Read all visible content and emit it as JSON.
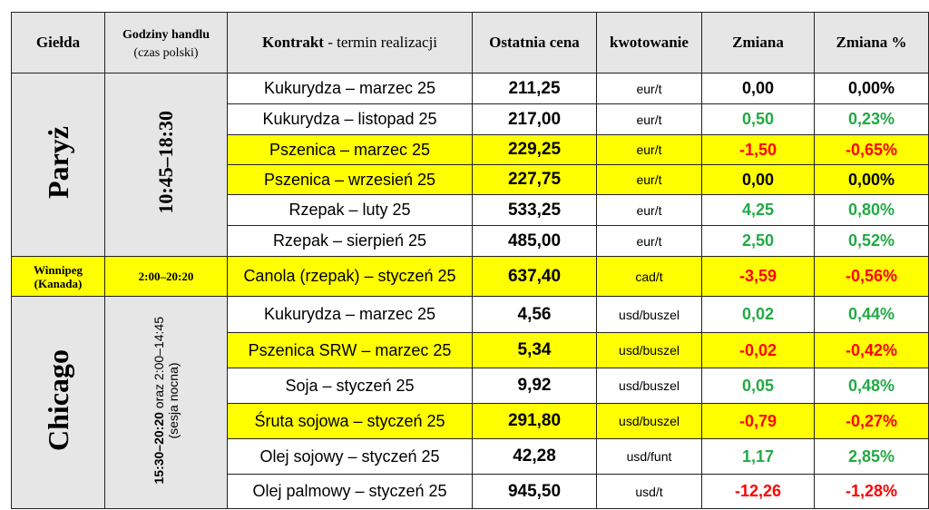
{
  "headers": {
    "gielda": "Giełda",
    "godziny": "Godziny handlu",
    "godziny_sub": "(czas polski)",
    "kontrakt": "Kontrakt",
    "kontrakt_sub": " - termin realizacji",
    "cena": "Ostatnia cena",
    "kwot": "kwotowanie",
    "zmiana": "Zmiana",
    "zmiana_pct": "Zmiana %"
  },
  "colors": {
    "positive": "#22aa44",
    "negative": "#ff0000",
    "neutral": "#000000",
    "highlight": "#ffff00",
    "header_bg": "#e6e6e6"
  },
  "groups": [
    {
      "exchange": "Paryż",
      "hours": "10:45–18:30"
    },
    {
      "exchange": "Winnipeg",
      "exchange_sub": "(Kanada)",
      "hours": "2:00–20:20"
    },
    {
      "exchange": "Chicago",
      "hours_bold": "15:30–20:20",
      "hours_rest": " oraz 2:00–14:45",
      "hours_note": "(sesja nocna)"
    }
  ],
  "rows": [
    {
      "contract": "Kukurydza – marzec 25",
      "price": "211,25",
      "unit": "eur/t",
      "change": "0,00",
      "pct": "0,00%",
      "hl": false,
      "dir": "neutral"
    },
    {
      "contract": "Kukurydza – listopad 25",
      "price": "217,00",
      "unit": "eur/t",
      "change": "0,50",
      "pct": "0,23%",
      "hl": false,
      "dir": "positive"
    },
    {
      "contract": "Pszenica – marzec 25",
      "price": "229,25",
      "unit": "eur/t",
      "change": "-1,50",
      "pct": "-0,65%",
      "hl": true,
      "dir": "negative"
    },
    {
      "contract": "Pszenica – wrzesień 25",
      "price": "227,75",
      "unit": "eur/t",
      "change": "0,00",
      "pct": "0,00%",
      "hl": true,
      "dir": "neutral"
    },
    {
      "contract": "Rzepak – luty 25",
      "price": "533,25",
      "unit": "eur/t",
      "change": "4,25",
      "pct": "0,80%",
      "hl": false,
      "dir": "positive"
    },
    {
      "contract": "Rzepak – sierpień 25",
      "price": "485,00",
      "unit": "eur/t",
      "change": "2,50",
      "pct": "0,52%",
      "hl": false,
      "dir": "positive"
    },
    {
      "contract": "Canola (rzepak) – styczeń 25",
      "price": "637,40",
      "unit": "cad/t",
      "change": "-3,59",
      "pct": "-0,56%",
      "hl": true,
      "dir": "negative"
    },
    {
      "contract": "Kukurydza – marzec 25",
      "price": "4,56",
      "unit": "usd/buszel",
      "change": "0,02",
      "pct": "0,44%",
      "hl": false,
      "dir": "positive"
    },
    {
      "contract": "Pszenica SRW – marzec 25",
      "price": "5,34",
      "unit": "usd/buszel",
      "change": "-0,02",
      "pct": "-0,42%",
      "hl": true,
      "dir": "negative"
    },
    {
      "contract": "Soja – styczeń 25",
      "price": "9,92",
      "unit": "usd/buszel",
      "change": "0,05",
      "pct": "0,48%",
      "hl": false,
      "dir": "positive"
    },
    {
      "contract": "Śruta sojowa – styczeń 25",
      "price": "291,80",
      "unit": "usd/buszel",
      "change": "-0,79",
      "pct": "-0,27%",
      "hl": true,
      "dir": "negative"
    },
    {
      "contract": "Olej sojowy – styczeń 25",
      "price": "42,28",
      "unit": "usd/funt",
      "change": "1,17",
      "pct": "2,85%",
      "hl": false,
      "dir": "positive"
    },
    {
      "contract": "Olej palmowy – styczeń 25",
      "price": "945,50",
      "unit": "usd/t",
      "change": "-12,26",
      "pct": "-1,28%",
      "hl": false,
      "dir": "negative"
    }
  ]
}
